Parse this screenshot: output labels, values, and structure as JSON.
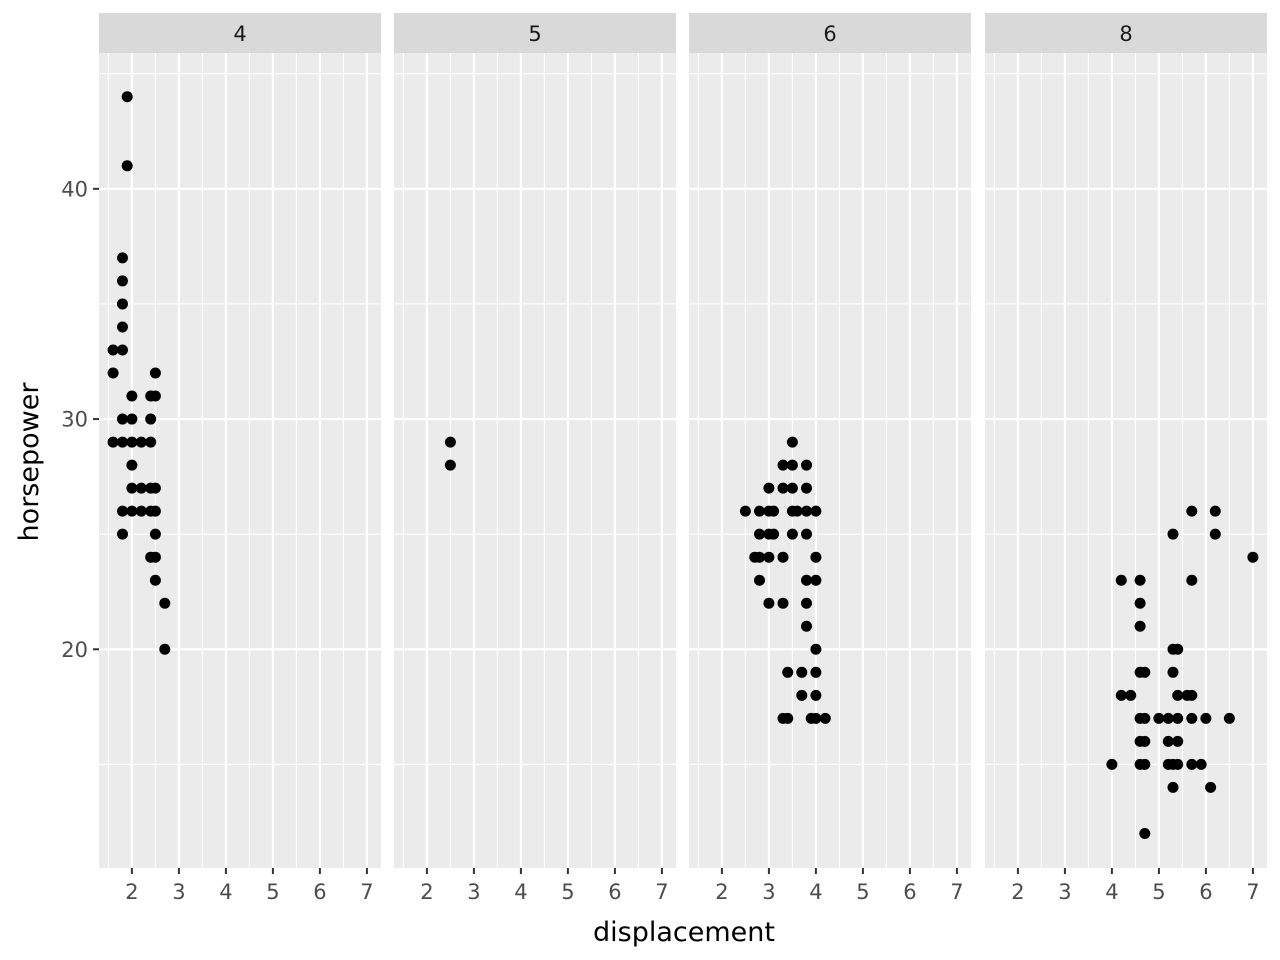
{
  "chart_data": {
    "type": "scatter",
    "xlabel": "displacement",
    "ylabel": "horsepower",
    "facet_labels": [
      "4",
      "5",
      "6",
      "8"
    ],
    "x_ticks": [
      "2",
      "3",
      "4",
      "5",
      "6",
      "7"
    ],
    "y_ticks": [
      "20",
      "30",
      "40"
    ],
    "xlim": [
      1.3,
      7.3
    ],
    "ylim": [
      10.5,
      45.9
    ],
    "grid": true,
    "colors": {
      "panel": "#ebebeb",
      "strip": "#d9d9d9",
      "grid": "#ffffff",
      "point": "#000000"
    },
    "panels": [
      {
        "label": "4",
        "points": [
          [
            1.9,
            44
          ],
          [
            1.9,
            41
          ],
          [
            1.8,
            37
          ],
          [
            1.8,
            36
          ],
          [
            1.8,
            35
          ],
          [
            1.8,
            34
          ],
          [
            1.6,
            33
          ],
          [
            1.8,
            33
          ],
          [
            1.6,
            32
          ],
          [
            2.5,
            32
          ],
          [
            2.0,
            31
          ],
          [
            2.4,
            31
          ],
          [
            2.5,
            31
          ],
          [
            1.8,
            30
          ],
          [
            2.0,
            30
          ],
          [
            2.4,
            30
          ],
          [
            1.6,
            29
          ],
          [
            1.8,
            29
          ],
          [
            2.0,
            29
          ],
          [
            2.2,
            29
          ],
          [
            2.4,
            29
          ],
          [
            2.0,
            28
          ],
          [
            2.0,
            27
          ],
          [
            2.2,
            27
          ],
          [
            2.4,
            27
          ],
          [
            2.5,
            27
          ],
          [
            1.8,
            26
          ],
          [
            2.0,
            26
          ],
          [
            2.2,
            26
          ],
          [
            2.4,
            26
          ],
          [
            2.5,
            26
          ],
          [
            1.8,
            25
          ],
          [
            2.5,
            25
          ],
          [
            2.4,
            24
          ],
          [
            2.5,
            24
          ],
          [
            2.5,
            23
          ],
          [
            2.7,
            22
          ],
          [
            2.7,
            20
          ]
        ]
      },
      {
        "label": "5",
        "points": [
          [
            2.5,
            29
          ],
          [
            2.5,
            28
          ]
        ]
      },
      {
        "label": "6",
        "points": [
          [
            3.5,
            29
          ],
          [
            3.3,
            28
          ],
          [
            3.5,
            28
          ],
          [
            3.8,
            28
          ],
          [
            3.0,
            27
          ],
          [
            3.3,
            27
          ],
          [
            3.5,
            27
          ],
          [
            3.8,
            27
          ],
          [
            2.5,
            26
          ],
          [
            2.8,
            26
          ],
          [
            3.0,
            26
          ],
          [
            3.1,
            26
          ],
          [
            3.5,
            26
          ],
          [
            3.6,
            26
          ],
          [
            3.8,
            26
          ],
          [
            4.0,
            26
          ],
          [
            2.8,
            25
          ],
          [
            3.0,
            25
          ],
          [
            3.1,
            25
          ],
          [
            3.5,
            25
          ],
          [
            3.8,
            25
          ],
          [
            2.7,
            24
          ],
          [
            2.8,
            24
          ],
          [
            3.0,
            24
          ],
          [
            3.3,
            24
          ],
          [
            4.0,
            24
          ],
          [
            2.8,
            23
          ],
          [
            3.8,
            23
          ],
          [
            4.0,
            23
          ],
          [
            3.0,
            22
          ],
          [
            3.3,
            22
          ],
          [
            3.8,
            22
          ],
          [
            3.8,
            21
          ],
          [
            4.0,
            20
          ],
          [
            3.4,
            19
          ],
          [
            3.7,
            19
          ],
          [
            4.0,
            19
          ],
          [
            3.7,
            18
          ],
          [
            4.0,
            18
          ],
          [
            3.3,
            17
          ],
          [
            3.4,
            17
          ],
          [
            3.9,
            17
          ],
          [
            4.0,
            17
          ],
          [
            4.2,
            17
          ]
        ]
      },
      {
        "label": "8",
        "points": [
          [
            5.7,
            26
          ],
          [
            6.2,
            26
          ],
          [
            5.3,
            25
          ],
          [
            6.2,
            25
          ],
          [
            7.0,
            24
          ],
          [
            4.2,
            23
          ],
          [
            4.6,
            23
          ],
          [
            5.7,
            23
          ],
          [
            4.6,
            22
          ],
          [
            4.6,
            21
          ],
          [
            5.3,
            20
          ],
          [
            5.4,
            20
          ],
          [
            4.6,
            19
          ],
          [
            4.7,
            19
          ],
          [
            5.3,
            19
          ],
          [
            4.2,
            18
          ],
          [
            4.4,
            18
          ],
          [
            5.4,
            18
          ],
          [
            5.6,
            18
          ],
          [
            5.7,
            18
          ],
          [
            4.6,
            17
          ],
          [
            4.7,
            17
          ],
          [
            5.0,
            17
          ],
          [
            5.2,
            17
          ],
          [
            5.4,
            17
          ],
          [
            5.7,
            17
          ],
          [
            6.0,
            17
          ],
          [
            6.5,
            17
          ],
          [
            4.6,
            16
          ],
          [
            4.7,
            16
          ],
          [
            5.2,
            16
          ],
          [
            5.4,
            16
          ],
          [
            4.0,
            15
          ],
          [
            4.6,
            15
          ],
          [
            4.7,
            15
          ],
          [
            5.2,
            15
          ],
          [
            5.3,
            15
          ],
          [
            5.4,
            15
          ],
          [
            5.7,
            15
          ],
          [
            5.9,
            15
          ],
          [
            5.3,
            14
          ],
          [
            6.1,
            14
          ],
          [
            4.7,
            12
          ]
        ]
      }
    ]
  }
}
